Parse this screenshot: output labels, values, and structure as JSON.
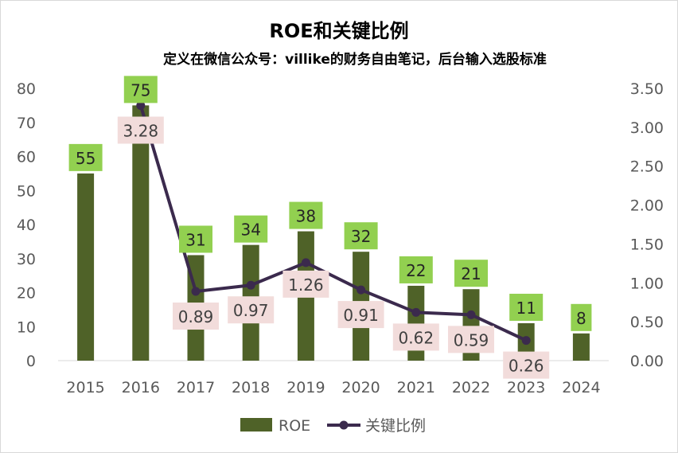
{
  "chart_data": {
    "type": "bar",
    "title": "ROE和关键比例",
    "subtitle": "定义在微信公众号：villike的财务自由笔记，后台输入选股标准",
    "categories": [
      "2015",
      "2016",
      "2017",
      "2018",
      "2019",
      "2020",
      "2021",
      "2022",
      "2023",
      "2024"
    ],
    "series": [
      {
        "name": "ROE",
        "type": "bar",
        "axis": "left",
        "color": "#4f6228",
        "label_bg": "#92d050",
        "values": [
          55,
          75,
          31,
          34,
          38,
          32,
          22,
          21,
          11,
          8
        ],
        "labels": [
          "55",
          "75",
          "31",
          "34",
          "38",
          "32",
          "22",
          "21",
          "11",
          "8"
        ]
      },
      {
        "name": "关键比例",
        "type": "line",
        "axis": "right",
        "color": "#3b2a4d",
        "label_bg": "#f2dcdb",
        "values": [
          null,
          3.28,
          0.89,
          0.97,
          1.26,
          0.91,
          0.62,
          0.59,
          0.26,
          null
        ],
        "labels": [
          "",
          "3.28",
          "0.89",
          "0.97",
          "1.26",
          "0.91",
          "0.62",
          "0.59",
          "0.26",
          ""
        ]
      }
    ],
    "y_left": {
      "ylim": [
        0,
        80
      ],
      "ticks": [
        "0",
        "10",
        "20",
        "30",
        "40",
        "50",
        "60",
        "70",
        "80"
      ]
    },
    "y_right": {
      "ylim": [
        0,
        3.5
      ],
      "ticks": [
        "0.00",
        "0.50",
        "1.00",
        "1.50",
        "2.00",
        "2.50",
        "3.00",
        "3.50"
      ]
    },
    "grid": false,
    "legend_position": "bottom"
  }
}
